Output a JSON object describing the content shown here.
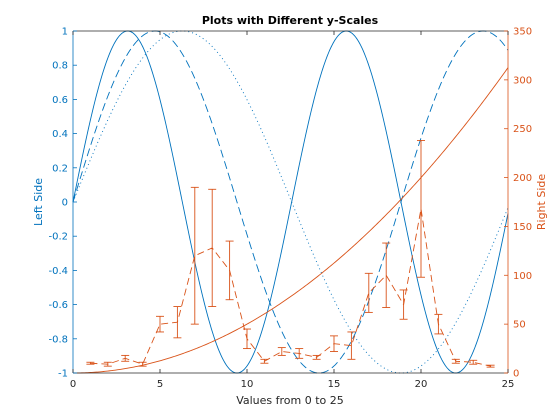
{
  "chart_data": {
    "type": "line",
    "title": "Plots with Different y-Scales",
    "xlabel": "Values from 0 to 25",
    "ylabel_left": "Left Side",
    "ylabel_right": "Right Side",
    "xlim": [
      0,
      25
    ],
    "ylim_left": [
      -1,
      1
    ],
    "ylim_right": [
      0,
      350
    ],
    "x_ticks": [
      "0",
      "5",
      "10",
      "15",
      "20",
      "25"
    ],
    "y_left_ticks": [
      "-1",
      "-0.8",
      "-0.6",
      "-0.4",
      "-0.2",
      "0",
      "0.2",
      "0.4",
      "0.6",
      "0.8",
      "1"
    ],
    "y_right_ticks": [
      "0",
      "50",
      "100",
      "150",
      "200",
      "250",
      "300",
      "350"
    ],
    "grid": false,
    "colors": {
      "left": "#0072BD",
      "right": "#D95319"
    },
    "series_left": [
      {
        "style": "solid",
        "period": 12.5664,
        "fn": "sin(x/2)"
      },
      {
        "style": "dashed",
        "period": 18.8496,
        "fn": "sin(x/3)"
      },
      {
        "style": "dotted",
        "period": 25.1327,
        "fn": "sin(x/4)"
      }
    ],
    "series_right_curve": {
      "style": "solid",
      "fn": "x^2/2",
      "x": [
        0,
        5,
        10,
        15,
        20,
        25
      ],
      "y": [
        0,
        12.5,
        50,
        112.5,
        200,
        312.5
      ]
    },
    "series_right_errorbar": {
      "style": "dashed",
      "x": [
        1,
        2,
        3,
        4,
        5,
        6,
        7,
        8,
        9,
        10,
        11,
        12,
        13,
        14,
        15,
        16,
        17,
        18,
        19,
        20,
        21,
        22,
        23,
        24
      ],
      "y": [
        10,
        9,
        15,
        9,
        50,
        52,
        120,
        128,
        105,
        35,
        12,
        22,
        20,
        16,
        30,
        28,
        82,
        100,
        70,
        168,
        50,
        12,
        11,
        7
      ],
      "err": [
        1,
        2,
        3,
        2,
        8,
        16,
        70,
        60,
        30,
        10,
        2,
        4,
        5,
        2,
        8,
        14,
        20,
        33,
        15,
        70,
        10,
        2,
        2,
        1
      ]
    }
  }
}
